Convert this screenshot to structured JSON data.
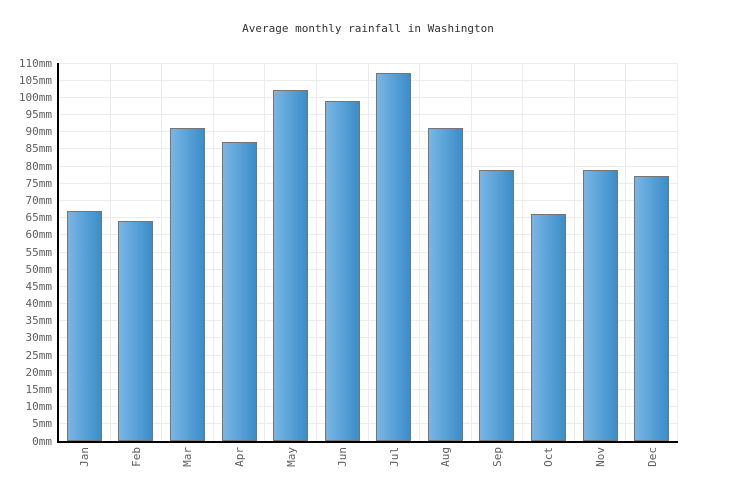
{
  "chart_data": {
    "type": "bar",
    "title": "Average monthly rainfall in Washington",
    "unit": "mm",
    "categories": [
      "Jan",
      "Feb",
      "Mar",
      "Apr",
      "May",
      "Jun",
      "Jul",
      "Aug",
      "Sep",
      "Oct",
      "Nov",
      "Dec"
    ],
    "values": [
      67,
      64,
      91,
      87,
      102,
      99,
      107,
      91,
      79,
      66,
      79,
      77
    ],
    "xlabel": "",
    "ylabel": "",
    "ylim": [
      0,
      110
    ],
    "ytick_step": 5,
    "ytick_suffix": "mm",
    "grid": "on",
    "legend": "none",
    "colors": {
      "bar_gradient_left": "#79b6e6",
      "bar_gradient_right": "#3b8dc8",
      "bar_border": "#757575",
      "axis_line": "#000000",
      "gridline": "#ececec",
      "tick_label": "#5e5e63",
      "title_text": "#333333"
    }
  }
}
